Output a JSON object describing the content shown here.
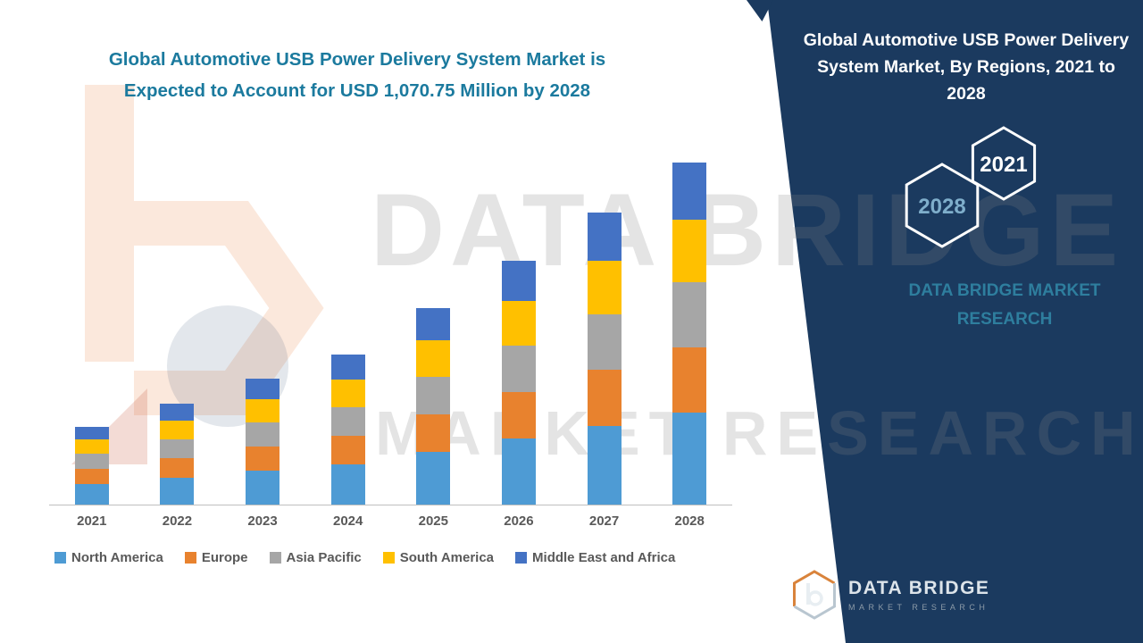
{
  "header": {
    "headline_line1": "Global Automotive USB Power Delivery System Market is",
    "headline_line2": "Expected to Account for USD 1,070.75 Million by 2028"
  },
  "chart_data": {
    "type": "bar",
    "stacked": true,
    "title": "Global Automotive USB Power Delivery System Market is Expected to Account for USD 1,070.75 Million by 2028",
    "unit": "USD Million",
    "categories": [
      "2021",
      "2022",
      "2023",
      "2024",
      "2025",
      "2026",
      "2027",
      "2028"
    ],
    "series": [
      {
        "name": "North America",
        "color": "#4E9BD4",
        "values": [
          65.9,
          85.3,
          106.7,
          126.9,
          166.3,
          206.6,
          247.3,
          289.1
        ]
      },
      {
        "name": "Europe",
        "color": "#E8822E",
        "values": [
          46.4,
          60.0,
          75.1,
          89.3,
          117.0,
          145.4,
          174.0,
          203.4
        ]
      },
      {
        "name": "Asia Pacific",
        "color": "#A6A6A6",
        "values": [
          46.4,
          60.0,
          75.1,
          89.3,
          117.0,
          145.4,
          174.0,
          203.4
        ]
      },
      {
        "name": "South America",
        "color": "#FFC000",
        "values": [
          45.1,
          58.5,
          73.1,
          87.0,
          114.0,
          141.5,
          169.5,
          198.1
        ]
      },
      {
        "name": "Middle East and Africa",
        "color": "#4472C4",
        "values": [
          40.2,
          52.2,
          65.1,
          77.5,
          101.7,
          126.1,
          151.2,
          176.75
        ]
      }
    ],
    "totals": [
      244.0,
      316.0,
      395.1,
      470.0,
      616.0,
      765.0,
      916.0,
      1070.75
    ],
    "ylim": [
      0,
      1100
    ],
    "grid": false,
    "y_axis_visible": false,
    "legend_position": "bottom"
  },
  "side_panel": {
    "title": "Global Automotive USB Power Delivery System Market, By Regions, 2021 to 2028",
    "badge_start_year": "2021",
    "badge_end_year": "2028",
    "brand_line1": "DATA BRIDGE MARKET",
    "brand_line2": "RESEARCH",
    "panel_color": "#1B3A5F",
    "accent_teal": "#2E7E9E"
  },
  "watermark": {
    "line1": "DATA BRIDGE",
    "line2": "MARKET RESEARCH"
  },
  "footer_logo": {
    "name": "DATA BRIDGE",
    "tagline": "MARKET RESEARCH"
  }
}
